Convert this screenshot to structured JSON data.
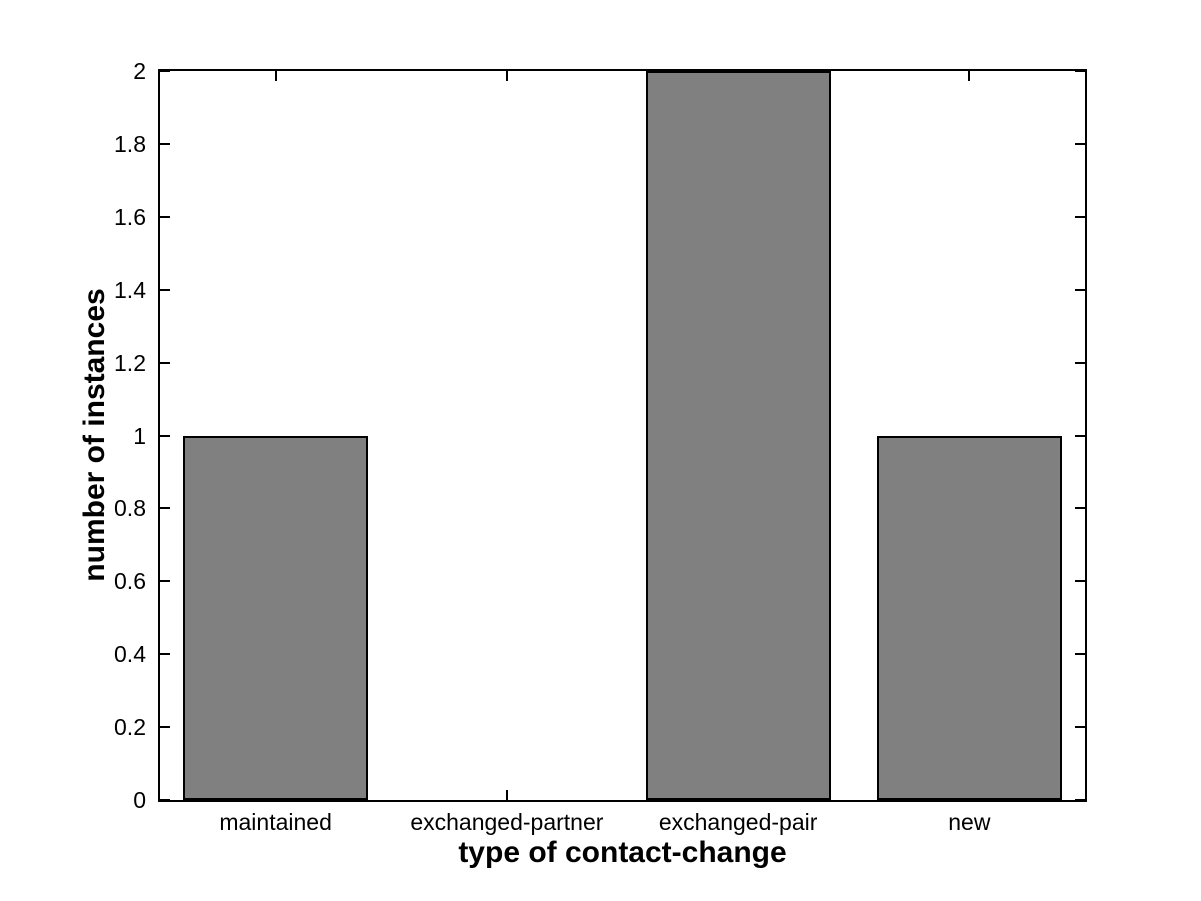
{
  "chart_data": {
    "type": "bar",
    "categories": [
      "maintained",
      "exchanged-partner",
      "exchanged-pair",
      "new"
    ],
    "values": [
      1,
      0,
      2,
      1
    ],
    "xlabel": "type of contact-change",
    "ylabel": "number of instances",
    "xlim": [
      0.5,
      4.5
    ],
    "ylim": [
      0,
      2
    ],
    "yticks": [
      0,
      0.2,
      0.4,
      0.6,
      0.8,
      1,
      1.2,
      1.4,
      1.6,
      1.8,
      2
    ],
    "ytick_labels": [
      "0",
      "0.2",
      "0.4",
      "0.6",
      "0.8",
      "1",
      "1.2",
      "1.4",
      "1.6",
      "1.8",
      "2"
    ],
    "bar_width_fraction": 0.8,
    "bar_color": "#808080",
    "bar_edge_color": "#000000",
    "axis_color": "#000000",
    "background_color": "#ffffff",
    "grid": false,
    "tick_direction": "in",
    "legend": null
  }
}
